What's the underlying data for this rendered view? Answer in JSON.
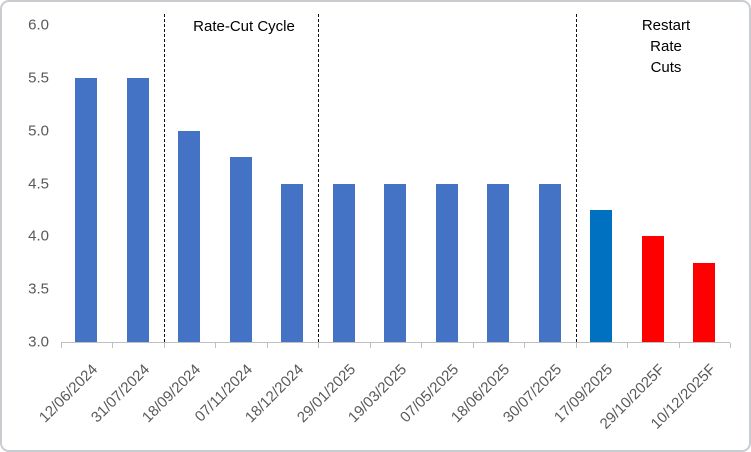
{
  "chart_data": {
    "type": "bar",
    "title": "",
    "categories": [
      "12/06/2024",
      "31/07/2024",
      "18/09/2024",
      "07/11/2024",
      "18/12/2024",
      "29/01/2025",
      "19/03/2025",
      "07/05/2025",
      "18/06/2025",
      "30/07/2025",
      "17/09/2025",
      "29/10/2025F",
      "10/12/2025F"
    ],
    "values": [
      5.5,
      5.5,
      5.0,
      4.75,
      4.5,
      4.5,
      4.5,
      4.5,
      4.5,
      4.5,
      4.25,
      4.0,
      3.75
    ],
    "bar_roles": [
      "actual",
      "actual",
      "actual",
      "actual",
      "actual",
      "actual",
      "actual",
      "actual",
      "actual",
      "actual",
      "highlight",
      "forecast",
      "forecast"
    ],
    "colors": {
      "actual": "#4472c4",
      "highlight": "#0070c0",
      "forecast": "#ff0000",
      "axis": "#bfbfbf",
      "tick_label": "#595959",
      "annotation": "#000000",
      "divider": "#111111"
    },
    "xlabel": "",
    "ylabel": "",
    "ylim": [
      3.0,
      6.0
    ],
    "ytick_labels": [
      "6.0",
      "5.5",
      "5.0",
      "4.5",
      "4.0",
      "3.5",
      "3.0"
    ],
    "grid": false,
    "legend": false,
    "dividers_after_category_index": [
      2,
      5,
      10
    ],
    "annotations": [
      {
        "id": "rate-cut-cycle",
        "lines": [
          "Rate-Cut Cycle"
        ]
      },
      {
        "id": "restart-rate-cuts",
        "lines": [
          "Restart Rate",
          "Cuts"
        ]
      }
    ]
  }
}
